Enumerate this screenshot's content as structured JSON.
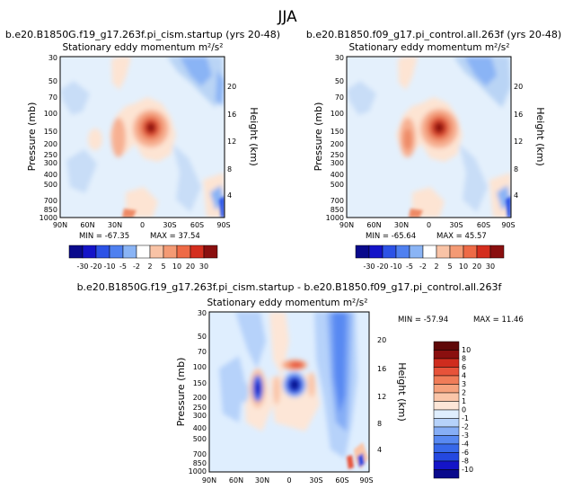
{
  "page_title": "JJA",
  "chart_data": [
    {
      "type": "contour",
      "title": "b.e20.B1850G.f19_g17.263f.pi_cism.startup (yrs 20-48)",
      "subtitle": "Stationary eddy momentum m²/s²",
      "xlabel": "",
      "ylabel": "Pressure (mb)",
      "ylabel_right": "Height (km)",
      "x_ticks": [
        "90N",
        "60N",
        "30N",
        "0",
        "30S",
        "60S",
        "90S"
      ],
      "y_ticks": [
        "30",
        "50",
        "70",
        "100",
        "150",
        "200",
        "250",
        "300",
        "400",
        "500",
        "700",
        "850",
        "1000"
      ],
      "y_right_ticks": [
        "20",
        "16",
        "12",
        "8",
        "4"
      ],
      "min_label": "MIN = -67.35",
      "max_label": "MAX = 37.54",
      "colorbar_levels": [
        "-30",
        "-20",
        "-10",
        "-5",
        "-2",
        "2",
        "5",
        "10",
        "20",
        "30"
      ],
      "features": [
        {
          "lat": 7,
          "p": 150,
          "value": 37.54,
          "kind": "max"
        },
        {
          "lat": 33,
          "p": 165,
          "value": 8,
          "kind": "pos"
        },
        {
          "lat": 52,
          "p": 180,
          "value": 3,
          "kind": "pos"
        },
        {
          "lat": -35,
          "p": 50,
          "value": -15,
          "kind": "neg"
        },
        {
          "lat": -20,
          "p": 130,
          "value": -3,
          "kind": "neg"
        },
        {
          "lat": 5,
          "p": 60,
          "value": -3,
          "kind": "neg"
        },
        {
          "lat": -80,
          "p": 800,
          "value": -67.35,
          "kind": "min"
        }
      ]
    },
    {
      "type": "contour",
      "title": "b.e20.B1850.f09_g17.pi_control.all.263f (yrs 20-48)",
      "subtitle": "Stationary eddy momentum m²/s²",
      "xlabel": "",
      "ylabel": "Pressure (mb)",
      "ylabel_right": "Height (km)",
      "x_ticks": [
        "90N",
        "60N",
        "30N",
        "0",
        "30S",
        "60S",
        "90S"
      ],
      "y_ticks": [
        "30",
        "50",
        "70",
        "100",
        "150",
        "200",
        "250",
        "300",
        "400",
        "500",
        "700",
        "850",
        "1000"
      ],
      "y_right_ticks": [
        "20",
        "16",
        "12",
        "8",
        "4"
      ],
      "min_label": "MIN = -65.64",
      "max_label": "MAX = 45.57",
      "colorbar_levels": [
        "-30",
        "-20",
        "-10",
        "-5",
        "-2",
        "2",
        "5",
        "10",
        "20",
        "30"
      ],
      "features": [
        {
          "lat": 5,
          "p": 145,
          "value": 45.57,
          "kind": "max"
        },
        {
          "lat": 33,
          "p": 160,
          "value": 10,
          "kind": "pos"
        },
        {
          "lat": -20,
          "p": 140,
          "value": -3,
          "kind": "neg"
        },
        {
          "lat": -35,
          "p": 55,
          "value": -12,
          "kind": "neg"
        },
        {
          "lat": -80,
          "p": 800,
          "value": -65.64,
          "kind": "min"
        }
      ]
    },
    {
      "type": "contour",
      "title": "b.e20.B1850G.f19_g17.263f.pi_cism.startup - b.e20.B1850.f09_g17.pi_control.all.263f",
      "subtitle": "Stationary eddy momentum m²/s²",
      "xlabel": "",
      "ylabel": "Pressure (mb)",
      "ylabel_right": "Height (km)",
      "x_ticks": [
        "90N",
        "60N",
        "30N",
        "0",
        "30S",
        "60S",
        "90S"
      ],
      "y_ticks": [
        "30",
        "50",
        "70",
        "100",
        "150",
        "200",
        "250",
        "300",
        "400",
        "500",
        "700",
        "850",
        "1000"
      ],
      "y_right_ticks": [
        "20",
        "16",
        "12",
        "8",
        "4"
      ],
      "min_label": "MIN = -57.94",
      "max_label": "MAX =  11.46",
      "colorbar_levels": [
        "-10",
        "-8",
        "-6",
        "-4",
        "-3",
        "-2",
        "-1",
        "0",
        "1",
        "2",
        "3",
        "4",
        "6",
        "8",
        "10"
      ],
      "features": [
        {
          "lat": 28,
          "p": 160,
          "value": 4,
          "kind": "pos"
        },
        {
          "lat": 5,
          "p": 100,
          "value": 3,
          "kind": "pos"
        },
        {
          "lat": 2,
          "p": 160,
          "value": -9,
          "kind": "neg"
        },
        {
          "lat": 40,
          "p": 170,
          "value": -2,
          "kind": "neg"
        },
        {
          "lat": -48,
          "p": 100,
          "value": -6,
          "kind": "neg"
        },
        {
          "lat": -80,
          "p": 820,
          "value": -57.94,
          "kind": "min"
        }
      ]
    }
  ],
  "colors": {
    "palette_div10": [
      "#0a0a8c",
      "#1414c8",
      "#2c52e6",
      "#4f80f0",
      "#8ab4f5",
      "#ffffff",
      "#f9c3a6",
      "#f49a74",
      "#ee6a46",
      "#d42e1e",
      "#8a0f0f"
    ],
    "palette_diff15": [
      "#0a0a8c",
      "#1414c8",
      "#2448e0",
      "#3768ea",
      "#5889f2",
      "#86aef6",
      "#b6d2fa",
      "#dfeefe",
      "#fde6d7",
      "#fac5a8",
      "#f6a27d",
      "#f07c58",
      "#e7533a",
      "#cf2c1e",
      "#8a0f0f",
      "#5f0808"
    ]
  }
}
